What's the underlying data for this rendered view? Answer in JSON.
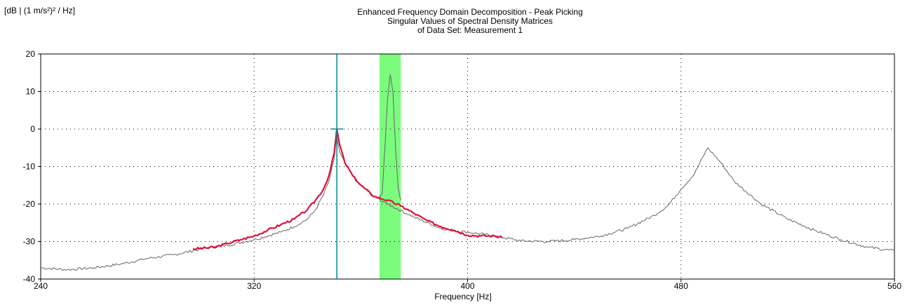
{
  "chart_data": {
    "type": "line",
    "title": "Enhanced Frequency Domain Decomposition - Peak Picking",
    "subtitle_lines": [
      "Singular Values of Spectral Density Matrices",
      "of Data Set: Measurement 1"
    ],
    "ylabel": "[dB | (1 m/s²)² / Hz]",
    "xlabel": "Frequency [Hz]",
    "xlim": [
      240,
      560
    ],
    "ylim": [
      -40,
      20
    ],
    "xticks": [
      240,
      320,
      400,
      480,
      560
    ],
    "yticks": [
      20,
      10,
      0,
      -10,
      -20,
      -30,
      -40
    ],
    "grid": true,
    "colors": {
      "sv1": "#666666",
      "highlight": "#dc143c",
      "band": "#7cfc7c",
      "cursor": "#008b8b"
    },
    "highlight_band": [
      367,
      375
    ],
    "cursor_x": 351,
    "series": [
      {
        "x": [
          240,
          250,
          260,
          270,
          280,
          290,
          300,
          310,
          320,
          330,
          335,
          340,
          343,
          346,
          348,
          350,
          351,
          352,
          354,
          357,
          360,
          365,
          370,
          380,
          390,
          400,
          410,
          420,
          430,
          440,
          450,
          460,
          470,
          475,
          480,
          485,
          490,
          495,
          500,
          510,
          520,
          530,
          540,
          550,
          560
        ],
        "y": [
          -37,
          -37.5,
          -37,
          -36,
          -34.5,
          -33.5,
          -32,
          -31,
          -29.5,
          -27.5,
          -26,
          -24,
          -21.5,
          -17.5,
          -14,
          -8,
          -2,
          -6,
          -9,
          -12.5,
          -15,
          -18,
          -20,
          -23.5,
          -26.5,
          -27.5,
          -28.5,
          -29.8,
          -30,
          -29.5,
          -28.5,
          -26.5,
          -23,
          -20.5,
          -16,
          -12,
          -5,
          -9,
          -14,
          -20,
          -24,
          -27,
          -29.5,
          -31.5,
          -32.5
        ]
      },
      {
        "x": [
          367,
          368,
          369,
          370,
          371,
          372,
          373,
          374,
          375
        ],
        "y": [
          -18.5,
          -17,
          -5,
          8,
          14.5,
          10,
          -5,
          -16,
          -19
        ]
      },
      {
        "x": [
          297,
          305,
          310,
          315,
          320,
          325,
          330,
          335,
          340,
          343,
          346,
          348,
          350,
          351,
          352,
          354,
          357,
          360,
          365,
          370,
          375,
          380,
          385,
          390,
          395,
          400,
          405,
          410,
          413
        ],
        "y": [
          -32,
          -31.5,
          -30.5,
          -29.5,
          -28.5,
          -27,
          -25.5,
          -24,
          -21.5,
          -19,
          -16,
          -12.5,
          -6.5,
          0,
          -4,
          -9,
          -12.5,
          -15,
          -18,
          -19,
          -20.5,
          -22.5,
          -24.5,
          -26,
          -27,
          -28.3,
          -28.5,
          -28.5,
          -29
        ]
      }
    ]
  }
}
